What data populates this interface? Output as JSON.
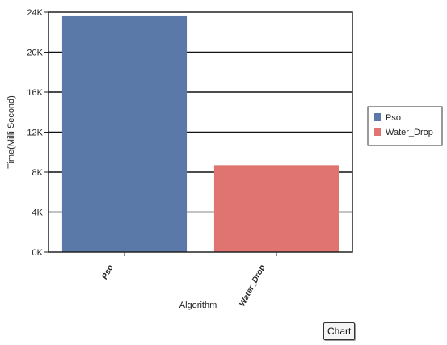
{
  "chart_data": {
    "type": "bar",
    "categories": [
      "Pso",
      "Water_Drop"
    ],
    "series": [
      {
        "name": "Pso",
        "values": [
          23600,
          null
        ],
        "color": "#5b79a8"
      },
      {
        "name": "Water_Drop",
        "values": [
          null,
          8700
        ],
        "color": "#e07470"
      }
    ],
    "xlabel": "Algorithm",
    "ylabel": "Time(Milli Second)",
    "ylim": [
      0,
      24000
    ],
    "yticks": [
      "0K",
      "4K",
      "8K",
      "12K",
      "16K",
      "20K",
      "24K"
    ],
    "grid": true,
    "legend": "right"
  },
  "chart_button": "Chart"
}
